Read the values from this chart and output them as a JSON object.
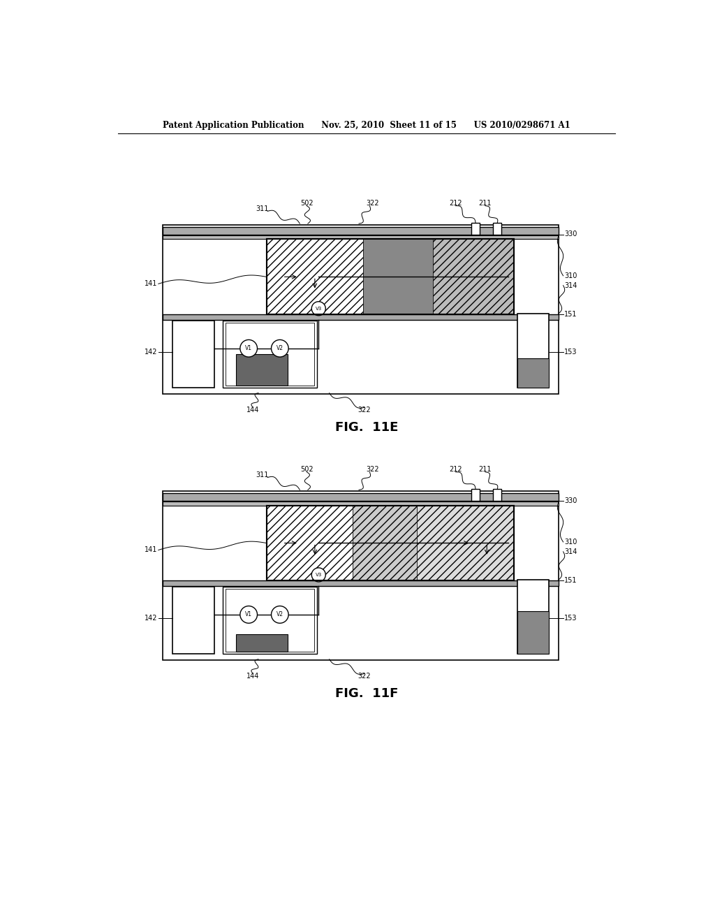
{
  "page_header": "Patent Application Publication      Nov. 25, 2010  Sheet 11 of 15      US 2010/0298671 A1",
  "fig_e_label": "FIG.  11E",
  "fig_f_label": "FIG.  11F",
  "bg_color": "#ffffff",
  "line_color": "#000000",
  "dark_fill": "#666666",
  "med_fill": "#999999",
  "light_fill": "#cccccc"
}
